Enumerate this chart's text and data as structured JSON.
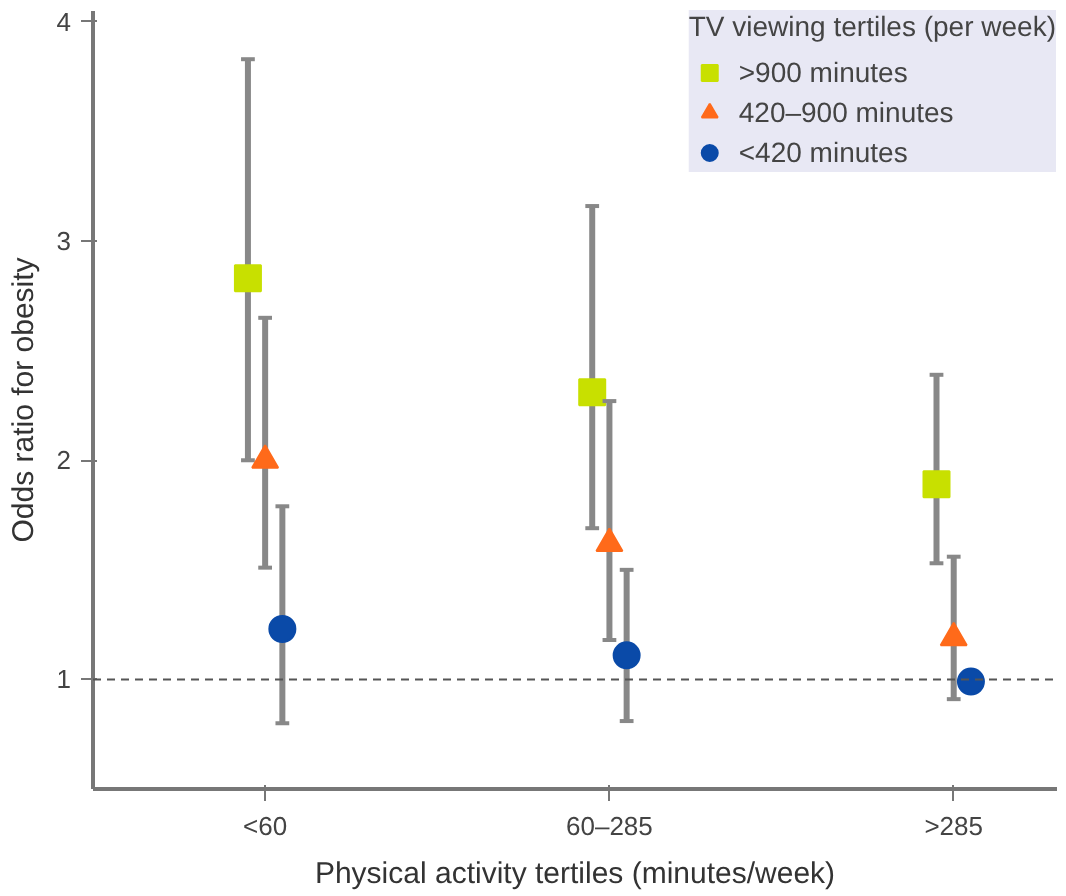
{
  "chart_data": {
    "type": "scatter",
    "xlabel": "Physical activity tertiles (minutes/week)",
    "ylabel": "Odds ratio for obesity",
    "legend_title": "TV viewing tertiles (per week)",
    "categories": [
      "<60",
      "60–285",
      ">285"
    ],
    "series": [
      {
        "name": ">900 minutes",
        "color": "#c8e000",
        "marker": "square",
        "values": [
          2.83,
          2.31,
          1.89
        ],
        "errors": [
          [
            2.0,
            3.83
          ],
          [
            1.69,
            3.16
          ],
          [
            1.53,
            2.39
          ]
        ]
      },
      {
        "name": "420–900 minutes",
        "color": "#ff6a1a",
        "marker": "triangle",
        "values": [
          2.0,
          1.62,
          1.19
        ],
        "errors": [
          [
            1.51,
            2.65
          ],
          [
            1.18,
            2.27
          ],
          [
            0.91,
            1.56
          ]
        ]
      },
      {
        "name": "<420 minutes",
        "color": "#0a4aa8",
        "marker": "circle",
        "values": [
          1.23,
          1.11,
          0.99
        ],
        "errors": [
          [
            0.8,
            1.79
          ],
          [
            0.81,
            1.5
          ],
          null
        ]
      }
    ],
    "ylim": [
      0.5,
      4.05
    ],
    "yticks": [
      1,
      2,
      3,
      4
    ],
    "grid": false,
    "legend": "top right",
    "ref_lines": [
      {
        "axis": "y",
        "value": 1,
        "line_style": "dashed",
        "color": "#555555"
      }
    ]
  }
}
